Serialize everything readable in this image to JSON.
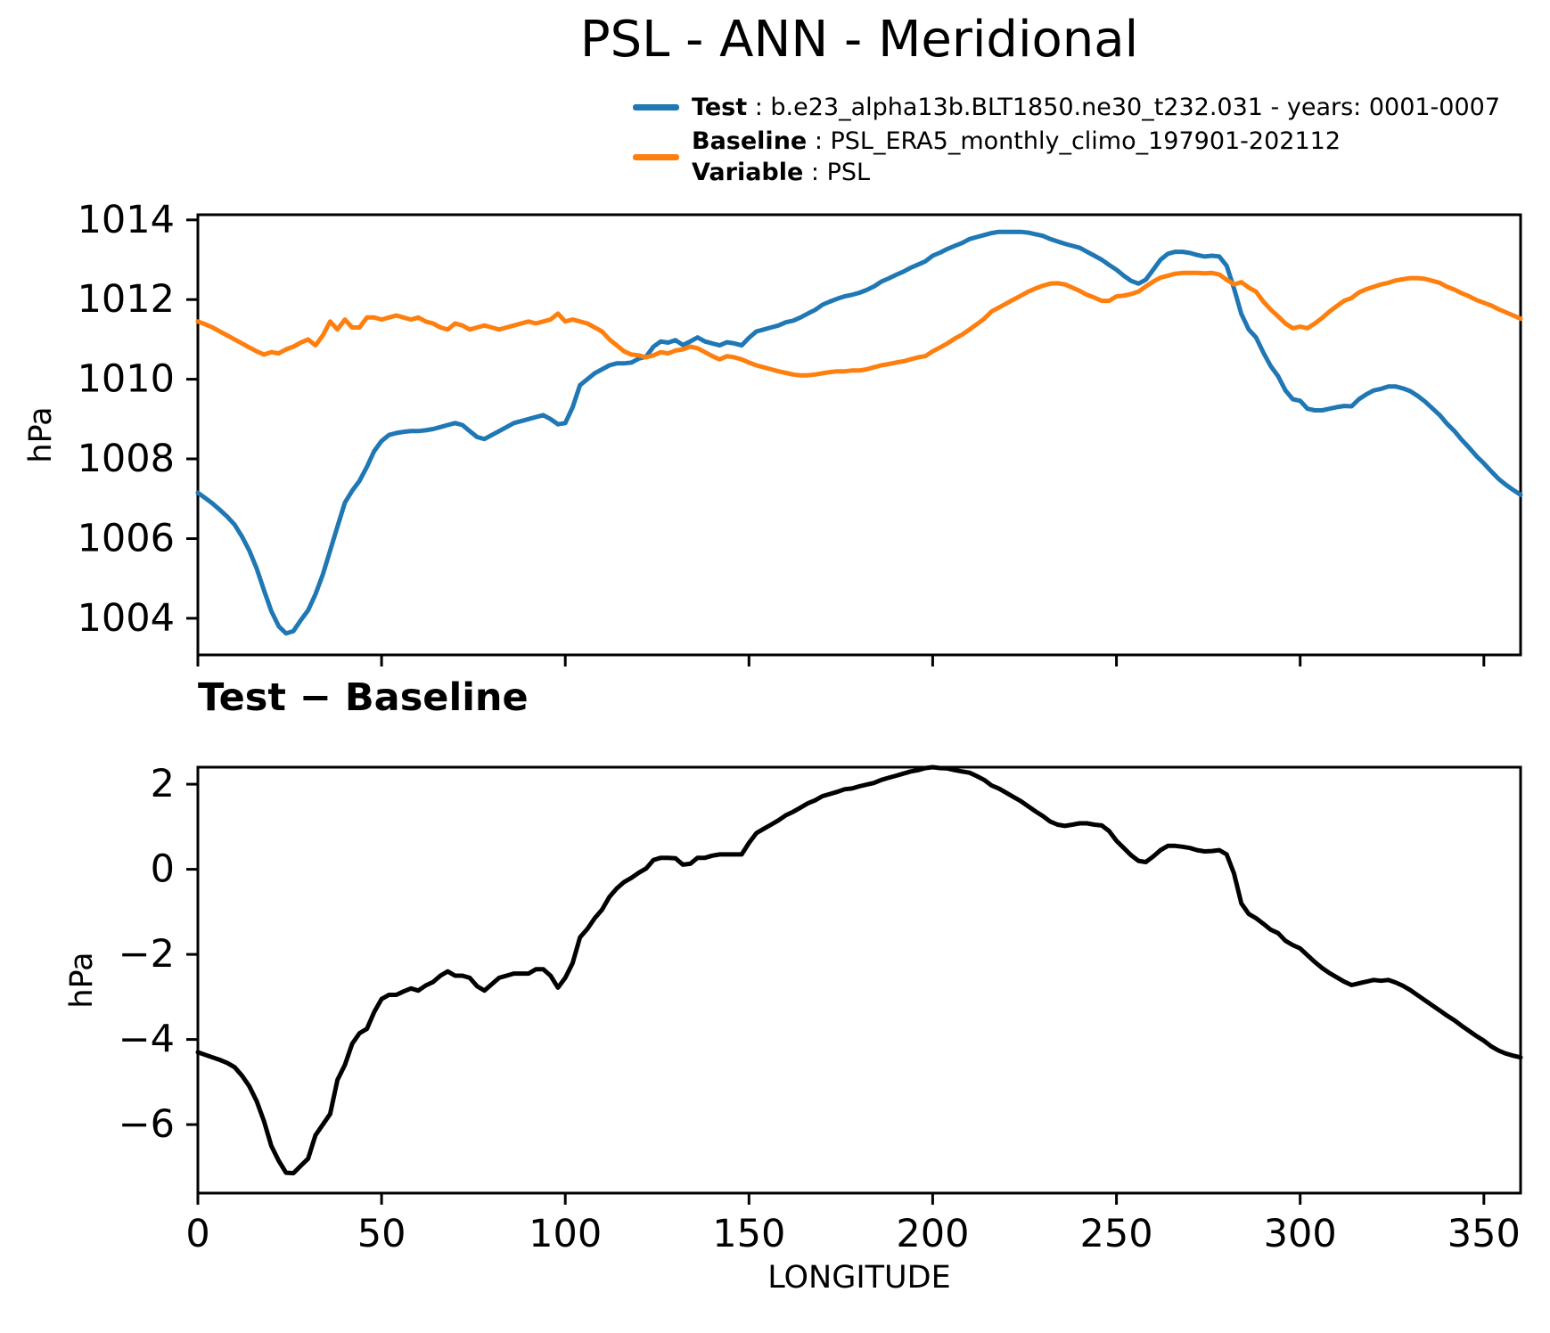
{
  "title": "PSL - ANN - Meridional",
  "legend": {
    "test": {
      "name": "Test",
      "desc": " : b.e23_alpha13b.BLT1850.ne30_t232.031 - years: 0001-0007"
    },
    "baseline": {
      "name": "Baseline",
      "desc": " : PSL_ERA5_monthly_climo_197901-202112"
    },
    "variable": {
      "name": "Variable",
      "desc": " : PSL"
    }
  },
  "chart_data": {
    "type": "line",
    "xlabel": "LONGITUDE",
    "x_start": 0,
    "x_step": 2,
    "x_range": [
      0,
      360
    ],
    "x_ticks": [
      0,
      50,
      100,
      150,
      200,
      250,
      300,
      350
    ],
    "panels": [
      {
        "id": "comparison",
        "ylabel": "hPa",
        "y_range": [
          1003.08,
          1014.13
        ],
        "y_ticks": [
          1004,
          1006,
          1008,
          1010,
          1012,
          1014
        ],
        "legend_position": "upper right above axes",
        "series": [
          {
            "name": "Test",
            "color": "#1f77b4",
            "values": [
              1007.15,
              1007.02,
              1006.88,
              1006.72,
              1006.55,
              1006.35,
              1006.05,
              1005.7,
              1005.25,
              1004.7,
              1004.18,
              1003.8,
              1003.62,
              1003.68,
              1003.95,
              1004.2,
              1004.6,
              1005.1,
              1005.7,
              1006.3,
              1006.9,
              1007.2,
              1007.45,
              1007.8,
              1008.2,
              1008.45,
              1008.6,
              1008.65,
              1008.68,
              1008.7,
              1008.7,
              1008.72,
              1008.75,
              1008.8,
              1008.85,
              1008.9,
              1008.85,
              1008.7,
              1008.55,
              1008.5,
              1008.6,
              1008.7,
              1008.8,
              1008.9,
              1008.95,
              1009.0,
              1009.05,
              1009.1,
              1009.0,
              1008.87,
              1008.9,
              1009.3,
              1009.85,
              1010.0,
              1010.15,
              1010.25,
              1010.35,
              1010.4,
              1010.4,
              1010.42,
              1010.52,
              1010.57,
              1010.82,
              1010.95,
              1010.92,
              1010.98,
              1010.86,
              1010.95,
              1011.05,
              1010.95,
              1010.9,
              1010.85,
              1010.93,
              1010.9,
              1010.85,
              1011.04,
              1011.2,
              1011.25,
              1011.3,
              1011.35,
              1011.43,
              1011.47,
              1011.55,
              1011.65,
              1011.74,
              1011.87,
              1011.95,
              1012.02,
              1012.08,
              1012.12,
              1012.17,
              1012.24,
              1012.33,
              1012.45,
              1012.53,
              1012.62,
              1012.7,
              1012.8,
              1012.88,
              1012.96,
              1013.1,
              1013.18,
              1013.27,
              1013.35,
              1013.42,
              1013.52,
              1013.57,
              1013.62,
              1013.67,
              1013.7,
              1013.7,
              1013.7,
              1013.7,
              1013.68,
              1013.64,
              1013.6,
              1013.52,
              1013.46,
              1013.4,
              1013.35,
              1013.3,
              1013.2,
              1013.1,
              1013.0,
              1012.87,
              1012.75,
              1012.6,
              1012.47,
              1012.4,
              1012.5,
              1012.75,
              1013.0,
              1013.15,
              1013.2,
              1013.2,
              1013.17,
              1013.12,
              1013.08,
              1013.1,
              1013.08,
              1012.85,
              1012.28,
              1011.64,
              1011.25,
              1011.05,
              1010.67,
              1010.33,
              1010.08,
              1009.72,
              1009.5,
              1009.46,
              1009.26,
              1009.22,
              1009.22,
              1009.26,
              1009.3,
              1009.33,
              1009.32,
              1009.5,
              1009.62,
              1009.72,
              1009.76,
              1009.82,
              1009.82,
              1009.77,
              1009.7,
              1009.58,
              1009.44,
              1009.27,
              1009.1,
              1008.88,
              1008.7,
              1008.48,
              1008.28,
              1008.07,
              1007.89,
              1007.69,
              1007.5,
              1007.35,
              1007.22,
              1007.1
            ]
          },
          {
            "name": "Baseline",
            "color": "#ff7f0e",
            "values": [
              1011.45,
              1011.38,
              1011.3,
              1011.2,
              1011.1,
              1011.0,
              1010.9,
              1010.8,
              1010.7,
              1010.62,
              1010.68,
              1010.65,
              1010.75,
              1010.82,
              1010.92,
              1011.0,
              1010.85,
              1011.1,
              1011.45,
              1011.25,
              1011.5,
              1011.3,
              1011.3,
              1011.55,
              1011.55,
              1011.5,
              1011.55,
              1011.6,
              1011.55,
              1011.5,
              1011.55,
              1011.45,
              1011.4,
              1011.3,
              1011.25,
              1011.4,
              1011.35,
              1011.25,
              1011.3,
              1011.35,
              1011.3,
              1011.25,
              1011.3,
              1011.35,
              1011.4,
              1011.45,
              1011.4,
              1011.45,
              1011.5,
              1011.65,
              1011.45,
              1011.5,
              1011.45,
              1011.4,
              1011.3,
              1011.2,
              1011.0,
              1010.85,
              1010.7,
              1010.62,
              1010.6,
              1010.55,
              1010.6,
              1010.68,
              1010.65,
              1010.72,
              1010.75,
              1010.82,
              1010.78,
              1010.68,
              1010.58,
              1010.5,
              1010.58,
              1010.55,
              1010.5,
              1010.42,
              1010.35,
              1010.3,
              1010.25,
              1010.2,
              1010.16,
              1010.12,
              1010.1,
              1010.1,
              1010.12,
              1010.15,
              1010.18,
              1010.2,
              1010.2,
              1010.22,
              1010.22,
              1010.25,
              1010.3,
              1010.35,
              1010.38,
              1010.42,
              1010.45,
              1010.5,
              1010.55,
              1010.58,
              1010.7,
              1010.8,
              1010.9,
              1011.02,
              1011.12,
              1011.25,
              1011.38,
              1011.52,
              1011.7,
              1011.8,
              1011.9,
              1012.0,
              1012.1,
              1012.2,
              1012.28,
              1012.35,
              1012.4,
              1012.41,
              1012.38,
              1012.3,
              1012.22,
              1012.12,
              1012.05,
              1011.97,
              1011.97,
              1012.08,
              1012.1,
              1012.14,
              1012.2,
              1012.33,
              1012.45,
              1012.55,
              1012.6,
              1012.65,
              1012.67,
              1012.67,
              1012.67,
              1012.66,
              1012.67,
              1012.63,
              1012.5,
              1012.38,
              1012.44,
              1012.3,
              1012.2,
              1011.95,
              1011.75,
              1011.58,
              1011.4,
              1011.28,
              1011.32,
              1011.28,
              1011.4,
              1011.54,
              1011.7,
              1011.84,
              1011.97,
              1012.04,
              1012.18,
              1012.26,
              1012.32,
              1012.38,
              1012.42,
              1012.48,
              1012.51,
              1012.54,
              1012.54,
              1012.52,
              1012.47,
              1012.42,
              1012.32,
              1012.25,
              1012.16,
              1012.08,
              1011.99,
              1011.92,
              1011.85,
              1011.76,
              1011.68,
              1011.6,
              1011.52
            ]
          }
        ]
      },
      {
        "id": "difference",
        "title": "Test − Baseline",
        "ylabel": "hPa",
        "y_range": [
          -7.61,
          2.4
        ],
        "y_ticks": [
          -6,
          -4,
          -2,
          0,
          2
        ],
        "series": [
          {
            "name": "Test − Baseline",
            "color": "#000000",
            "values": [
              -4.3,
              -4.36,
              -4.42,
              -4.48,
              -4.55,
              -4.65,
              -4.85,
              -5.1,
              -5.45,
              -5.92,
              -6.5,
              -6.85,
              -7.13,
              -7.14,
              -6.97,
              -6.8,
              -6.25,
              -6.0,
              -5.75,
              -4.95,
              -4.6,
              -4.1,
              -3.85,
              -3.75,
              -3.35,
              -3.05,
              -2.95,
              -2.95,
              -2.87,
              -2.8,
              -2.85,
              -2.73,
              -2.65,
              -2.5,
              -2.4,
              -2.5,
              -2.5,
              -2.55,
              -2.75,
              -2.85,
              -2.7,
              -2.55,
              -2.5,
              -2.45,
              -2.45,
              -2.45,
              -2.35,
              -2.35,
              -2.5,
              -2.78,
              -2.55,
              -2.2,
              -1.6,
              -1.4,
              -1.15,
              -0.95,
              -0.65,
              -0.45,
              -0.3,
              -0.2,
              -0.08,
              0.02,
              0.22,
              0.27,
              0.27,
              0.26,
              0.11,
              0.13,
              0.27,
              0.27,
              0.32,
              0.35,
              0.35,
              0.35,
              0.35,
              0.62,
              0.85,
              0.95,
              1.05,
              1.15,
              1.27,
              1.35,
              1.45,
              1.55,
              1.62,
              1.72,
              1.77,
              1.82,
              1.88,
              1.9,
              1.95,
              1.99,
              2.03,
              2.1,
              2.15,
              2.2,
              2.25,
              2.3,
              2.33,
              2.38,
              2.4,
              2.38,
              2.37,
              2.33,
              2.3,
              2.27,
              2.19,
              2.1,
              1.97,
              1.9,
              1.8,
              1.7,
              1.6,
              1.48,
              1.36,
              1.25,
              1.12,
              1.05,
              1.02,
              1.05,
              1.08,
              1.08,
              1.05,
              1.03,
              0.9,
              0.67,
              0.5,
              0.33,
              0.2,
              0.17,
              0.3,
              0.45,
              0.55,
              0.55,
              0.53,
              0.5,
              0.45,
              0.42,
              0.43,
              0.45,
              0.35,
              -0.1,
              -0.8,
              -1.05,
              -1.15,
              -1.28,
              -1.42,
              -1.5,
              -1.68,
              -1.78,
              -1.86,
              -2.02,
              -2.18,
              -2.32,
              -2.44,
              -2.54,
              -2.64,
              -2.72,
              -2.68,
              -2.64,
              -2.6,
              -2.62,
              -2.6,
              -2.66,
              -2.74,
              -2.84,
              -2.96,
              -3.08,
              -3.2,
              -3.32,
              -3.44,
              -3.55,
              -3.68,
              -3.8,
              -3.92,
              -4.03,
              -4.16,
              -4.26,
              -4.33,
              -4.38,
              -4.42
            ]
          }
        ]
      }
    ]
  }
}
